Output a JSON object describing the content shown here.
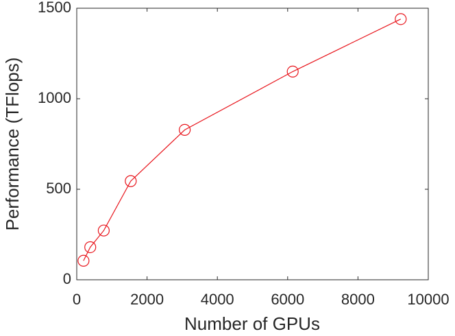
{
  "chart_data": {
    "type": "line",
    "xlabel": "Number of GPUs",
    "ylabel": "Performance (TFlops)",
    "x": [
      192,
      384,
      768,
      1536,
      3072,
      6144,
      9216
    ],
    "series": [
      {
        "color": "#e8141b",
        "marker": "circle",
        "values": [
          105,
          180,
          272,
          545,
          828,
          1150,
          1440
        ]
      }
    ],
    "xlim": [
      0,
      10000
    ],
    "xticks": [
      0,
      2000,
      4000,
      6000,
      8000,
      10000
    ],
    "ylim": [
      0,
      1500
    ],
    "yticks": [
      0,
      500,
      1000,
      1500
    ]
  }
}
